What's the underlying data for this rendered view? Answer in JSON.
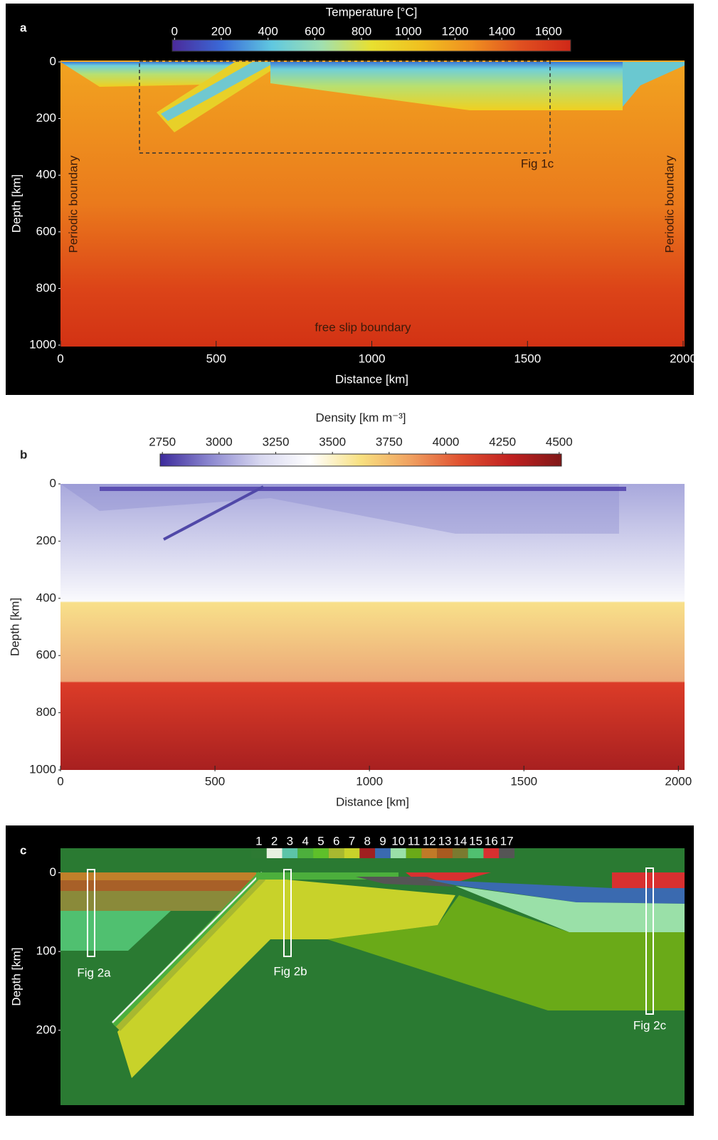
{
  "chart_data": [
    {
      "type": "heatmap",
      "panel_label": "a",
      "colorbar": {
        "title": "Temperature [°C]",
        "lim": [
          -10,
          1695
        ],
        "ticks": [
          0,
          200,
          400,
          600,
          800,
          1000,
          1200,
          1400,
          1600
        ],
        "colors": [
          "#4b2a9a",
          "#3a6ad8",
          "#60c8e0",
          "#a0e0b0",
          "#e8e030",
          "#f0c020",
          "#f09020",
          "#e05020",
          "#d02818"
        ]
      },
      "xlabel": "Distance [km]",
      "ylabel": "Depth [km]",
      "xlim": [
        0,
        2000
      ],
      "xticks": [
        0,
        500,
        1000,
        1500,
        2000
      ],
      "ylim": [
        0,
        1000
      ],
      "yticks": [
        0,
        200,
        400,
        600,
        800,
        1000
      ],
      "annotations": [
        "Periodic boundary",
        "Periodic boundary",
        "free slip boundary",
        "Fig 1c"
      ]
    },
    {
      "type": "heatmap",
      "panel_label": "b",
      "colorbar": {
        "title": "Density [km m⁻³]",
        "lim": [
          2740,
          4510
        ],
        "ticks": [
          2750,
          3000,
          3250,
          3500,
          3750,
          4000,
          4250,
          4500
        ],
        "colors": [
          "#3c2a9c",
          "#8c88d0",
          "#d8d8f0",
          "#ffffff",
          "#f8e080",
          "#f0a060",
          "#e05030",
          "#c02020",
          "#801818"
        ]
      },
      "xlabel": "Distance [km]",
      "ylabel": "Depth [km]",
      "xlim": [
        0,
        2020
      ],
      "xticks": [
        0,
        500,
        1000,
        1500,
        2000
      ],
      "ylim": [
        0,
        1000
      ],
      "yticks": [
        0,
        200,
        400,
        600,
        800,
        1000
      ]
    },
    {
      "type": "heatmap",
      "panel_label": "c",
      "legend": {
        "labels": [
          1,
          2,
          3,
          4,
          5,
          6,
          7,
          8,
          9,
          10,
          11,
          12,
          13,
          14,
          15,
          16,
          17
        ],
        "colors": [
          "#2d7a33",
          "#e8f0e0",
          "#5cc4a8",
          "#4caf3c",
          "#5ec02a",
          "#a8b830",
          "#c8d22a",
          "#a02020",
          "#3a6ab0",
          "#9ae0a8",
          "#6aaa18",
          "#c07a28",
          "#a85a20",
          "#7a7a30",
          "#50c070",
          "#d83030",
          "#555555"
        ]
      },
      "ylabel": "Depth [km]",
      "ylim": [
        -31,
        295
      ],
      "yticks": [
        0,
        100,
        200
      ],
      "annotations": [
        "Fig 2a",
        "Fig 2b",
        "Fig 2c"
      ]
    }
  ]
}
